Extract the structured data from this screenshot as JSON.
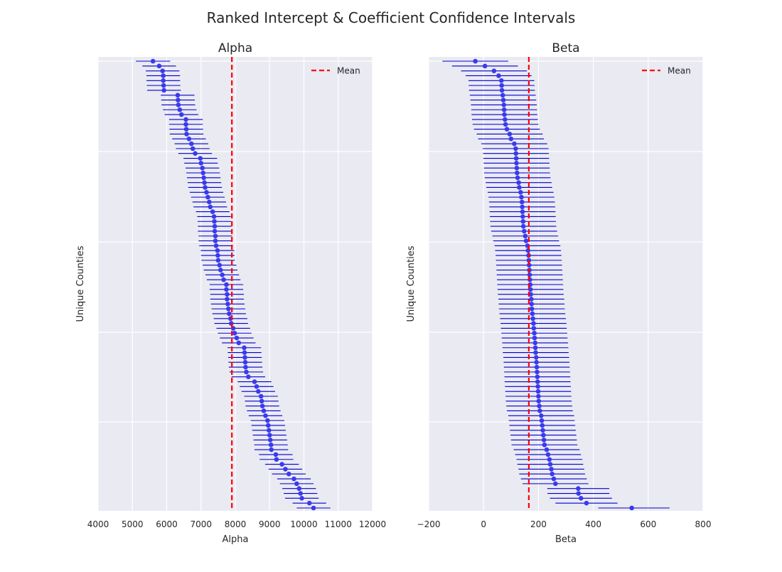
{
  "figure": {
    "title": "Ranked Intercept & Coefficient Confidence Intervals"
  },
  "colors": {
    "background": "#eaeaf2",
    "grid": "#ffffff",
    "interval": "#0000cc",
    "point": "#3a3aee",
    "mean": "#ff0000"
  },
  "chart_data": [
    {
      "type": "errorbar",
      "title": "Alpha",
      "xlabel": "Alpha",
      "ylabel": "Unique Counties",
      "xlim": [
        4000,
        12000
      ],
      "xticks": [
        "4000",
        "5000",
        "6000",
        "7000",
        "8000",
        "9000",
        "10000",
        "11000",
        "12000"
      ],
      "grid": true,
      "legend": {
        "position": "top-right",
        "entries": [
          "Mean"
        ]
      },
      "mean": 7900,
      "estimates": [
        5600,
        5780,
        5880,
        5900,
        5900,
        5910,
        5920,
        6320,
        6330,
        6340,
        6380,
        6430,
        6560,
        6560,
        6570,
        6580,
        6650,
        6720,
        6760,
        6830,
        6980,
        7000,
        7040,
        7060,
        7080,
        7100,
        7120,
        7160,
        7200,
        7240,
        7270,
        7340,
        7380,
        7390,
        7400,
        7400,
        7420,
        7420,
        7440,
        7480,
        7490,
        7500,
        7540,
        7570,
        7620,
        7660,
        7740,
        7740,
        7760,
        7760,
        7780,
        7800,
        7820,
        7860,
        7880,
        7940,
        7980,
        8040,
        8100,
        8260,
        8270,
        8280,
        8290,
        8300,
        8320,
        8380,
        8560,
        8620,
        8670,
        8750,
        8770,
        8790,
        8830,
        8880,
        8940,
        8960,
        8980,
        9000,
        9020,
        9040,
        9050,
        9180,
        9200,
        9360,
        9460,
        9560,
        9710,
        9790,
        9860,
        9900,
        9940,
        10160,
        10280
      ],
      "lower": [
        5100,
        5290,
        5390,
        5410,
        5410,
        5420,
        5430,
        5830,
        5840,
        5850,
        5890,
        5940,
        6070,
        6070,
        6080,
        6090,
        6160,
        6230,
        6270,
        6340,
        6490,
        6510,
        6550,
        6570,
        6590,
        6610,
        6630,
        6670,
        6710,
        6750,
        6780,
        6850,
        6890,
        6900,
        6910,
        6910,
        6930,
        6930,
        6950,
        6990,
        7000,
        7010,
        7050,
        7080,
        7130,
        7170,
        7250,
        7250,
        7270,
        7270,
        7290,
        7310,
        7330,
        7370,
        7390,
        7450,
        7490,
        7550,
        7610,
        7770,
        7780,
        7790,
        7800,
        7810,
        7830,
        7890,
        8070,
        8130,
        8180,
        8260,
        8280,
        8300,
        8340,
        8390,
        8450,
        8470,
        8490,
        8510,
        8530,
        8550,
        8560,
        8690,
        8710,
        8870,
        8970,
        9070,
        9220,
        9300,
        9370,
        9410,
        9450,
        9670,
        9790
      ],
      "upper": [
        6100,
        6270,
        6370,
        6390,
        6390,
        6400,
        6410,
        6810,
        6820,
        6830,
        6870,
        6920,
        7050,
        7050,
        7060,
        7070,
        7140,
        7210,
        7250,
        7320,
        7470,
        7490,
        7530,
        7550,
        7570,
        7590,
        7610,
        7650,
        7690,
        7730,
        7760,
        7830,
        7870,
        7880,
        7890,
        7890,
        7910,
        7910,
        7930,
        7970,
        7980,
        7990,
        8030,
        8060,
        8110,
        8150,
        8230,
        8230,
        8250,
        8250,
        8270,
        8290,
        8310,
        8350,
        8370,
        8430,
        8470,
        8530,
        8590,
        8750,
        8760,
        8770,
        8780,
        8790,
        8810,
        8870,
        9050,
        9110,
        9160,
        9240,
        9260,
        9280,
        9320,
        9370,
        9430,
        9450,
        9470,
        9490,
        9510,
        9530,
        9540,
        9670,
        9690,
        9850,
        9950,
        10050,
        10200,
        10280,
        10350,
        10390,
        10430,
        10650,
        10770
      ]
    },
    {
      "type": "errorbar",
      "title": "Beta",
      "xlabel": "Beta",
      "ylabel": "Unique Counties",
      "xlim": [
        -200,
        800
      ],
      "xticks": [
        "−200",
        "0",
        "200",
        "400",
        "600",
        "800"
      ],
      "grid": true,
      "legend": {
        "position": "top-right",
        "entries": [
          "Mean"
        ]
      },
      "mean": 165,
      "estimates": [
        -30,
        5,
        38,
        55,
        65,
        66,
        67,
        70,
        72,
        74,
        75,
        76,
        78,
        80,
        85,
        95,
        100,
        112,
        117,
        118,
        119,
        120,
        121,
        122,
        124,
        128,
        130,
        135,
        138,
        140,
        141,
        142,
        143,
        144,
        145,
        148,
        152,
        155,
        160,
        162,
        164,
        165,
        166,
        167,
        168,
        169,
        170,
        171,
        172,
        174,
        175,
        176,
        178,
        180,
        182,
        183,
        185,
        186,
        188,
        189,
        190,
        192,
        193,
        194,
        195,
        196,
        197,
        198,
        199,
        200,
        201,
        203,
        205,
        210,
        212,
        214,
        216,
        218,
        220,
        222,
        230,
        235,
        240,
        243,
        247,
        250,
        256,
        262,
        345,
        346,
        355,
        375,
        540
      ],
      "lower": [
        -150,
        -115,
        -82,
        -65,
        -55,
        -54,
        -53,
        -50,
        -48,
        -46,
        -45,
        -44,
        -42,
        -40,
        -35,
        -25,
        -20,
        -8,
        -3,
        -2,
        -1,
        0,
        1,
        2,
        4,
        8,
        10,
        15,
        18,
        20,
        21,
        22,
        23,
        24,
        25,
        28,
        32,
        35,
        40,
        42,
        44,
        45,
        46,
        47,
        48,
        49,
        50,
        51,
        52,
        54,
        55,
        56,
        58,
        60,
        62,
        63,
        65,
        66,
        68,
        69,
        70,
        72,
        73,
        74,
        75,
        76,
        77,
        78,
        79,
        80,
        81,
        83,
        85,
        90,
        92,
        94,
        96,
        98,
        100,
        102,
        110,
        115,
        120,
        123,
        127,
        130,
        136,
        142,
        232,
        233,
        242,
        262,
        418
      ],
      "upper": [
        90,
        125,
        158,
        175,
        185,
        186,
        187,
        190,
        192,
        194,
        195,
        196,
        198,
        200,
        205,
        215,
        220,
        232,
        237,
        238,
        239,
        240,
        241,
        242,
        244,
        248,
        250,
        255,
        258,
        260,
        261,
        262,
        263,
        264,
        265,
        268,
        272,
        275,
        280,
        282,
        284,
        285,
        286,
        287,
        288,
        289,
        290,
        291,
        292,
        294,
        295,
        296,
        298,
        300,
        302,
        303,
        305,
        306,
        308,
        309,
        310,
        312,
        313,
        314,
        315,
        316,
        317,
        318,
        319,
        320,
        321,
        323,
        325,
        330,
        332,
        334,
        336,
        338,
        340,
        342,
        350,
        355,
        360,
        363,
        367,
        370,
        376,
        382,
        458,
        459,
        468,
        488,
        678
      ]
    }
  ]
}
